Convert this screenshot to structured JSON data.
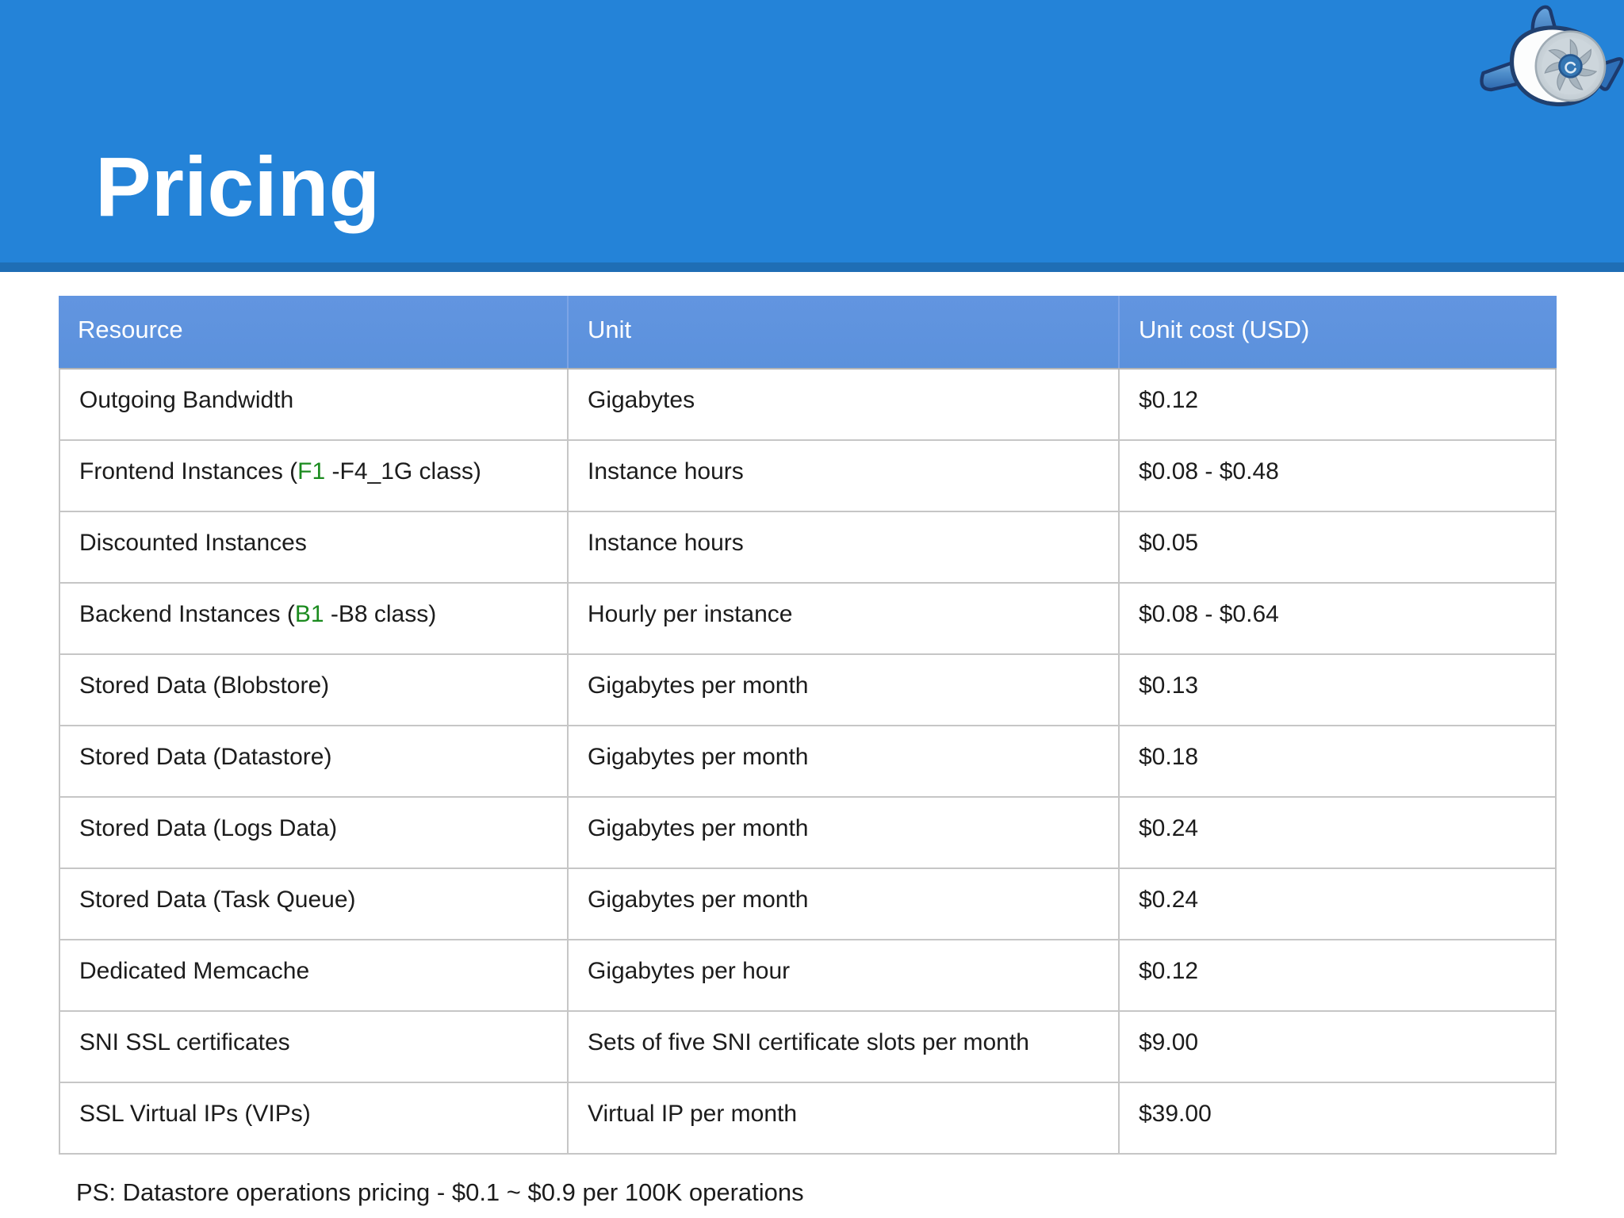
{
  "slide": {
    "title": "Pricing",
    "footnote": "PS: Datastore operations pricing - $0.1 ~ $0.9 per 100K operations",
    "logo": "google-app-engine-jet-engine"
  },
  "colors": {
    "banner": "#2483d8",
    "banner_strip": "#1f6eb5",
    "table_header_bg": "#5b91dc",
    "table_header_text": "#ffffff",
    "row_border": "#c6c6c6",
    "text": "#1c1c1c",
    "highlight_green": "#1b8b1f"
  },
  "table": {
    "columns": [
      "Resource",
      "Unit",
      "Unit cost (USD)"
    ],
    "rows": [
      {
        "resource": [
          {
            "t": "Outgoing Bandwidth"
          }
        ],
        "unit": "Gigabytes",
        "cost": "$0.12"
      },
      {
        "resource": [
          {
            "t": "Frontend Instances ("
          },
          {
            "t": "F1",
            "green": true
          },
          {
            "t": " -F4_1G class)"
          }
        ],
        "unit": "Instance hours",
        "cost": "$0.08 - $0.48"
      },
      {
        "resource": [
          {
            "t": "Discounted Instances"
          }
        ],
        "unit": "Instance hours",
        "cost": "$0.05"
      },
      {
        "resource": [
          {
            "t": "Backend Instances ("
          },
          {
            "t": "B1",
            "green": true
          },
          {
            "t": " -B8 class)"
          }
        ],
        "unit": "Hourly per instance",
        "cost": "$0.08 - $0.64"
      },
      {
        "resource": [
          {
            "t": "Stored Data (Blobstore)"
          }
        ],
        "unit": "Gigabytes per month",
        "cost": "$0.13"
      },
      {
        "resource": [
          {
            "t": "Stored Data (Datastore)"
          }
        ],
        "unit": "Gigabytes per month",
        "cost": "$0.18"
      },
      {
        "resource": [
          {
            "t": "Stored Data (Logs Data)"
          }
        ],
        "unit": "Gigabytes per month",
        "cost": "$0.24"
      },
      {
        "resource": [
          {
            "t": "Stored Data (Task Queue)"
          }
        ],
        "unit": "Gigabytes per month",
        "cost": "$0.24"
      },
      {
        "resource": [
          {
            "t": "Dedicated Memcache"
          }
        ],
        "unit": "Gigabytes per hour",
        "cost": "$0.12"
      },
      {
        "resource": [
          {
            "t": "SNI SSL certificates"
          }
        ],
        "unit": "Sets of five SNI certificate slots per month",
        "cost": "$9.00"
      },
      {
        "resource": [
          {
            "t": "SSL Virtual IPs (VIPs)"
          }
        ],
        "unit": "Virtual IP per month",
        "cost": "$39.00"
      }
    ]
  }
}
